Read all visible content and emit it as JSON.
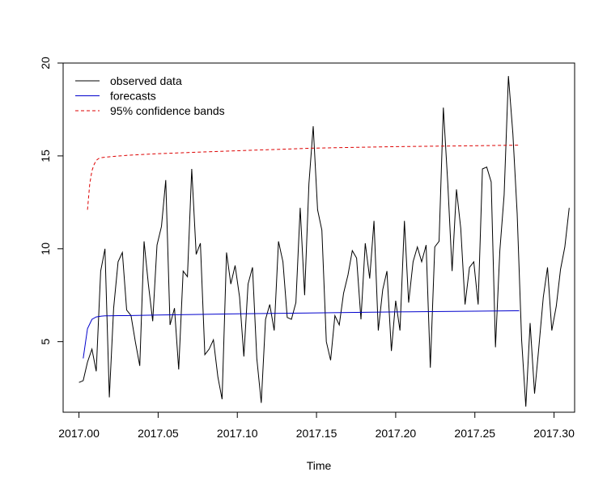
{
  "chart_data": {
    "type": "line",
    "title": "",
    "xlabel": "Time",
    "ylabel": "",
    "xlim": [
      2016.99,
      2017.313
    ],
    "ylim": [
      1.2,
      20.0
    ],
    "x_ticks": [
      {
        "value": 2017.0,
        "label": "2017.00"
      },
      {
        "value": 2017.05,
        "label": "2017.05"
      },
      {
        "value": 2017.1,
        "label": "2017.10"
      },
      {
        "value": 2017.15,
        "label": "2017.15"
      },
      {
        "value": 2017.2,
        "label": "2017.20"
      },
      {
        "value": 2017.25,
        "label": "2017.25"
      },
      {
        "value": 2017.3,
        "label": "2017.30"
      }
    ],
    "y_ticks": [
      {
        "value": 5,
        "label": "5"
      },
      {
        "value": 10,
        "label": "10"
      },
      {
        "value": 15,
        "label": "15"
      },
      {
        "value": 20,
        "label": "20"
      }
    ],
    "grid": false,
    "legend": {
      "position": "top-left",
      "entries": [
        {
          "label": "observed data",
          "color": "#000000",
          "dash": "solid"
        },
        {
          "label": "forecasts",
          "color": "#0000cc",
          "dash": "solid"
        },
        {
          "label": "95% confidence bands",
          "color": "#dd0000",
          "dash": "dashed"
        }
      ]
    },
    "series": [
      {
        "key": "observed",
        "color": "#000000",
        "dash": "solid",
        "x": [
          2017.0,
          2017.0027,
          2017.0054,
          2017.0082,
          2017.0109,
          2017.0137,
          2017.0164,
          2017.0192,
          2017.0219,
          2017.0247,
          2017.0274,
          2017.0301,
          2017.0329,
          2017.0356,
          2017.0384,
          2017.0411,
          2017.0438,
          2017.0466,
          2017.0493,
          2017.0521,
          2017.0548,
          2017.0575,
          2017.0603,
          2017.063,
          2017.0658,
          2017.0685,
          2017.0712,
          2017.074,
          2017.0767,
          2017.0795,
          2017.0822,
          2017.0849,
          2017.0877,
          2017.0904,
          2017.0932,
          2017.0959,
          2017.0986,
          2017.1014,
          2017.1041,
          2017.1068,
          2017.1096,
          2017.1123,
          2017.1151,
          2017.1178,
          2017.1205,
          2017.1233,
          2017.126,
          2017.1288,
          2017.1315,
          2017.1342,
          2017.137,
          2017.1397,
          2017.1425,
          2017.1452,
          2017.1479,
          2017.1507,
          2017.1534,
          2017.1562,
          2017.1589,
          2017.1616,
          2017.1644,
          2017.1671,
          2017.1699,
          2017.1726,
          2017.1753,
          2017.1781,
          2017.1808,
          2017.1836,
          2017.1863,
          2017.189,
          2017.1918,
          2017.1945,
          2017.1973,
          2017.2,
          2017.2027,
          2017.2055,
          2017.2082,
          2017.211,
          2017.2137,
          2017.2164,
          2017.2192,
          2017.2219,
          2017.2247,
          2017.2274,
          2017.2301,
          2017.2329,
          2017.2356,
          2017.2384,
          2017.2411,
          2017.2438,
          2017.2466,
          2017.2493,
          2017.2521,
          2017.2548,
          2017.2575,
          2017.2603,
          2017.263,
          2017.2658,
          2017.2685,
          2017.2712,
          2017.274,
          2017.2767,
          2017.2795,
          2017.2822,
          2017.2849,
          2017.2877,
          2017.2904,
          2017.2932,
          2017.2959,
          2017.2986,
          2017.3014,
          2017.3041,
          2017.3068,
          2017.3096
        ],
        "y": [
          2.8,
          2.9,
          3.9,
          4.6,
          3.4,
          8.8,
          10.0,
          2.0,
          6.8,
          9.3,
          9.8,
          6.7,
          6.4,
          5.0,
          3.7,
          10.4,
          8.1,
          6.1,
          10.2,
          11.2,
          13.7,
          5.9,
          6.8,
          3.5,
          8.8,
          8.5,
          14.3,
          9.7,
          10.3,
          4.3,
          4.6,
          5.1,
          3.1,
          1.9,
          9.8,
          8.1,
          9.1,
          7.4,
          4.2,
          8.1,
          9.0,
          4.1,
          1.7,
          6.2,
          7.0,
          5.6,
          10.4,
          9.3,
          6.3,
          6.2,
          7.1,
          12.2,
          7.5,
          13.5,
          16.6,
          12.1,
          11.0,
          5.0,
          4.0,
          6.4,
          5.9,
          7.6,
          8.6,
          9.9,
          9.5,
          6.2,
          10.3,
          8.4,
          11.5,
          5.6,
          7.8,
          8.8,
          4.5,
          7.2,
          5.6,
          11.5,
          7.1,
          9.3,
          10.1,
          9.3,
          10.2,
          3.6,
          10.1,
          10.4,
          17.6,
          13.5,
          8.8,
          13.2,
          11.1,
          7.0,
          9.0,
          9.3,
          7.0,
          14.3,
          14.4,
          13.6,
          4.7,
          9.9,
          12.9,
          19.3,
          16.2,
          11.9,
          5.1,
          1.5,
          6.0,
          2.2,
          4.7,
          7.4,
          9.0,
          5.6,
          6.9,
          8.9,
          10.1,
          12.2
        ]
      },
      {
        "key": "forecasts",
        "color": "#0000cc",
        "dash": "solid",
        "x": [
          2017.0027,
          2017.0054,
          2017.0082,
          2017.0109,
          2017.0137,
          2017.0164,
          2017.0192,
          2017.0247,
          2017.03,
          2017.05,
          2017.1,
          2017.15,
          2017.2,
          2017.25,
          2017.278
        ],
        "y": [
          4.1,
          5.7,
          6.2,
          6.33,
          6.37,
          6.39,
          6.39,
          6.4,
          6.4,
          6.43,
          6.5,
          6.55,
          6.6,
          6.64,
          6.66
        ]
      },
      {
        "key": "upper",
        "color": "#dd0000",
        "dash": "dashed",
        "x": [
          2017.0054,
          2017.0068,
          2017.0082,
          2017.0096,
          2017.0109,
          2017.0123,
          2017.0137,
          2017.0164,
          2017.0192,
          2017.03,
          2017.05,
          2017.1,
          2017.15,
          2017.2,
          2017.25,
          2017.278
        ],
        "y": [
          12.1,
          13.5,
          14.2,
          14.55,
          14.75,
          14.85,
          14.9,
          14.93,
          14.95,
          15.03,
          15.12,
          15.28,
          15.42,
          15.5,
          15.55,
          15.58
        ]
      }
    ]
  }
}
